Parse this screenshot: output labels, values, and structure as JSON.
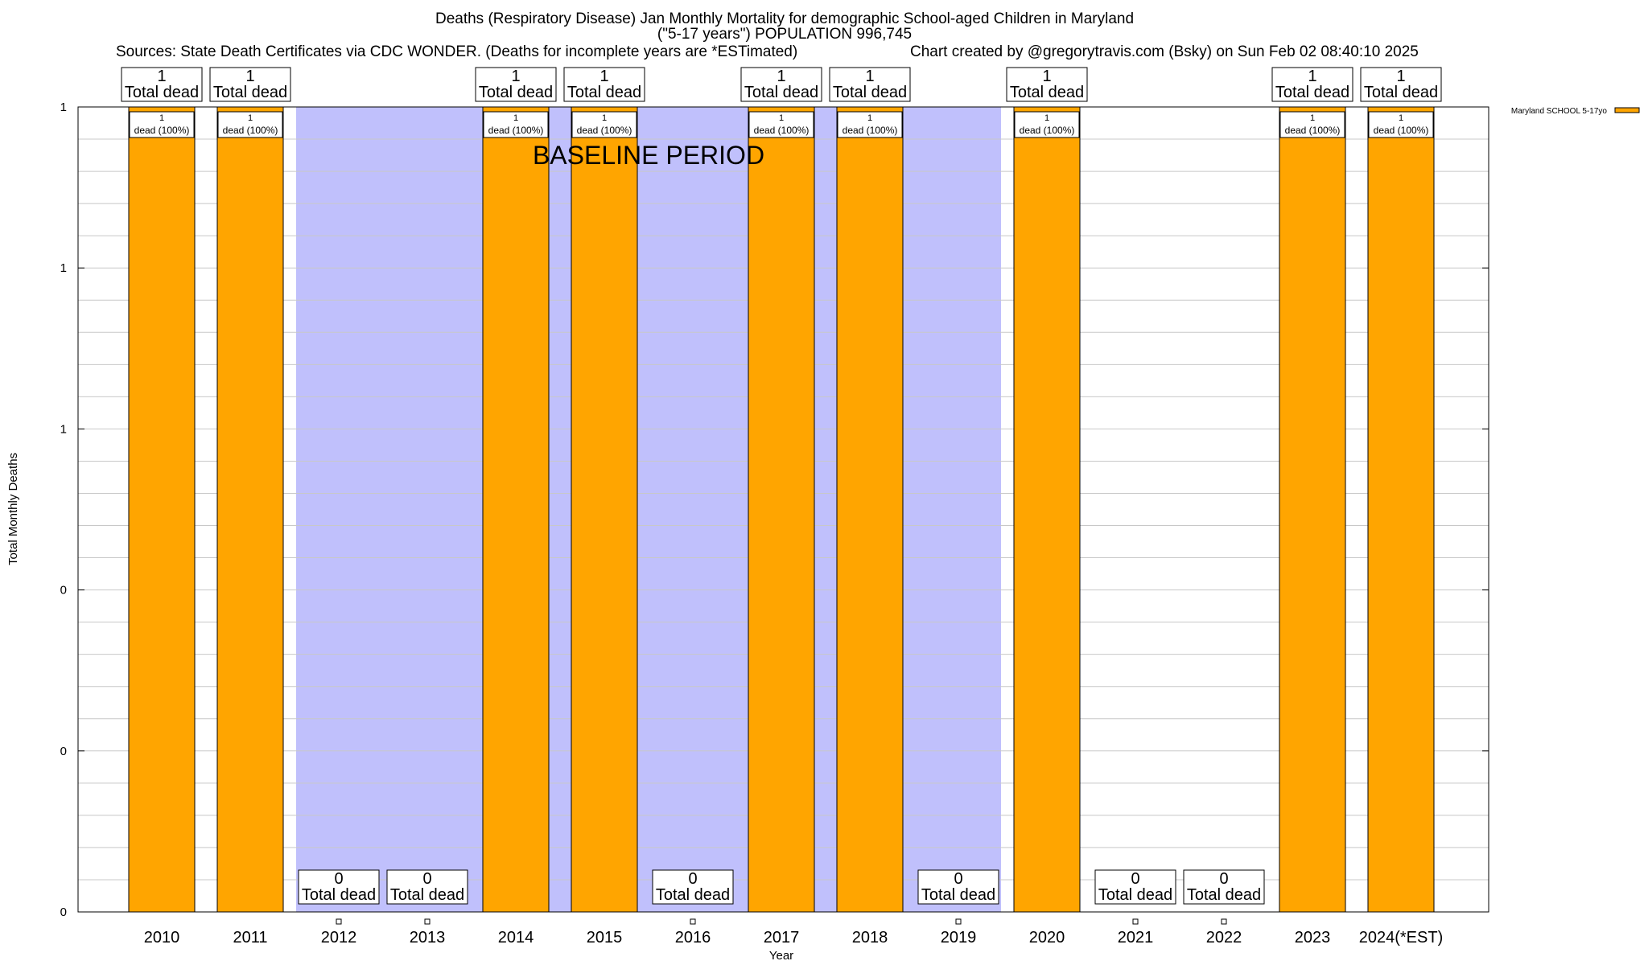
{
  "header": {
    "title_line1": "Deaths (Respiratory Disease) Jan Monthly Mortality for demographic School-aged Children in Maryland",
    "title_line2": "(\"5-17 years\") POPULATION 996,745",
    "sources": "Sources: State Death Certificates via CDC WONDER. (Deaths for incomplete years are *ESTimated)",
    "credit": "Chart created by @gregorytravis.com (Bsky) on Sun Feb 02 08:40:10 2025"
  },
  "chart_data": {
    "type": "bar",
    "xlabel": "Year",
    "ylabel": "Total Monthly Deaths",
    "ylim": [
      0,
      1
    ],
    "y_tick_values": [
      0,
      0.2,
      0.4,
      0.6,
      0.8,
      1
    ],
    "y_tick_labels": [
      "0",
      "0",
      "0",
      "1",
      "1",
      "1"
    ],
    "minor_grid_step": 0.04,
    "categories": [
      "2010",
      "2011",
      "2012",
      "2013",
      "2014",
      "2015",
      "2016",
      "2017",
      "2018",
      "2019",
      "2020",
      "2021",
      "2022",
      "2023",
      "2024(*EST)"
    ],
    "series": [
      {
        "name": "Maryland SCHOOL 5-17yo",
        "color": "#ffa500",
        "values": [
          1,
          1,
          0,
          0,
          1,
          1,
          0,
          1,
          1,
          0,
          1,
          0,
          0,
          1,
          1
        ]
      }
    ],
    "total_labels": [
      "1",
      "1",
      "0",
      "0",
      "1",
      "1",
      "0",
      "1",
      "1",
      "0",
      "1",
      "0",
      "0",
      "1",
      "1"
    ],
    "total_suffix": "Total dead",
    "inner_count_labels": [
      "1",
      "1",
      "",
      "",
      "1",
      "1",
      "",
      "1",
      "1",
      "",
      "1",
      "",
      "",
      "1",
      "1"
    ],
    "inner_pct_labels": [
      "dead (100%)",
      "dead (100%)",
      "",
      "",
      "dead (100%)",
      "dead (100%)",
      "",
      "dead (100%)",
      "dead (100%)",
      "",
      "dead (100%)",
      "",
      "",
      "dead (100%)",
      "dead (100%)"
    ],
    "baseline": {
      "label": "BASELINE PERIOD",
      "from_year": "2012",
      "to_year": "2019",
      "color": "#c0c0fc"
    },
    "legend": {
      "label": "Maryland SCHOOL 5-17yo",
      "position": "top-right outside"
    }
  }
}
